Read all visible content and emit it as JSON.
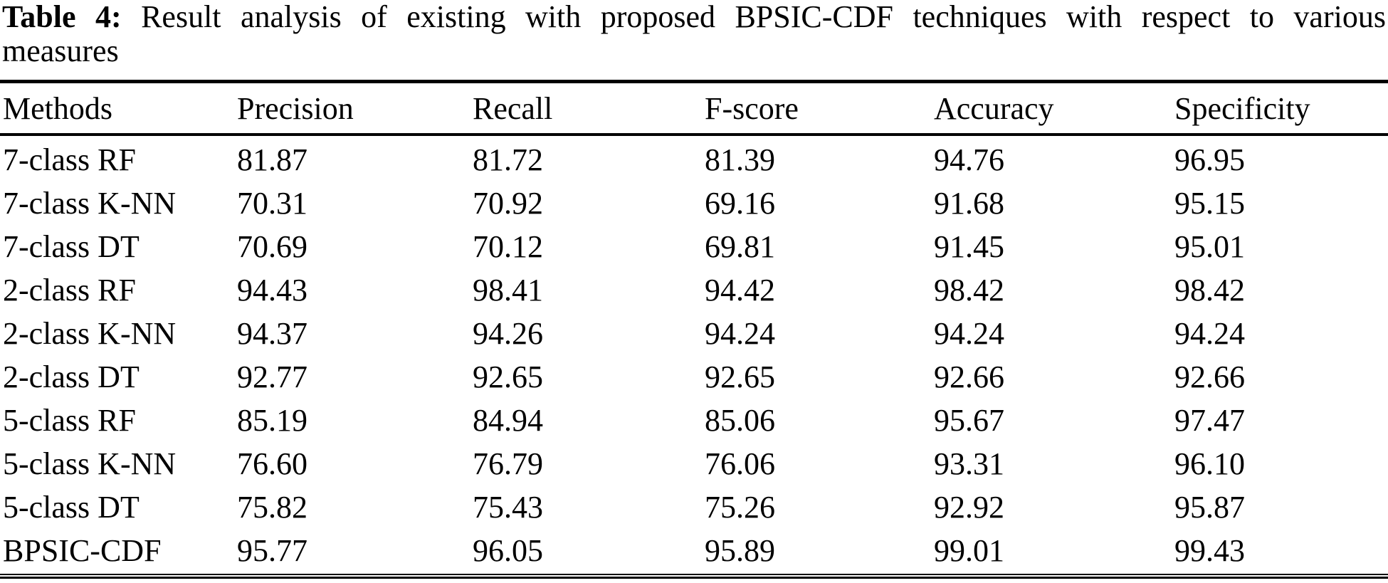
{
  "page": {
    "background_color": "#ffffff",
    "text_color": "#000000",
    "rule_color": "#000000"
  },
  "caption": {
    "bold_prefix": "Table 4:",
    "line1": "Table 4: Result analysis of existing with proposed BPSIC-CDF techniques with respect to various",
    "line2": "measures"
  },
  "table": {
    "columns": [
      "Methods",
      "Precision",
      "Recall",
      "F-score",
      "Accuracy",
      "Specificity"
    ],
    "rows": [
      {
        "method": "7-class RF",
        "values": [
          "81.87",
          "81.72",
          "81.39",
          "94.76",
          "96.95"
        ]
      },
      {
        "method": "7-class K-NN",
        "values": [
          "70.31",
          "70.92",
          "69.16",
          "91.68",
          "95.15"
        ]
      },
      {
        "method": "7-class DT",
        "values": [
          "70.69",
          "70.12",
          "69.81",
          "91.45",
          "95.01"
        ]
      },
      {
        "method": "2-class RF",
        "values": [
          "94.43",
          "98.41",
          "94.42",
          "98.42",
          "98.42"
        ]
      },
      {
        "method": "2-class K-NN",
        "values": [
          "94.37",
          "94.26",
          "94.24",
          "94.24",
          "94.24"
        ]
      },
      {
        "method": "2-class DT",
        "values": [
          "92.77",
          "92.65",
          "92.65",
          "92.66",
          "92.66"
        ]
      },
      {
        "method": "5-class RF",
        "values": [
          "85.19",
          "84.94",
          "85.06",
          "95.67",
          "97.47"
        ]
      },
      {
        "method": "5-class K-NN",
        "values": [
          "76.60",
          "76.79",
          "76.06",
          "93.31",
          "96.10"
        ]
      },
      {
        "method": "5-class DT",
        "values": [
          "75.82",
          "75.43",
          "75.26",
          "92.92",
          "95.87"
        ]
      },
      {
        "method": "BPSIC-CDF",
        "values": [
          "95.77",
          "96.05",
          "95.89",
          "99.01",
          "99.43"
        ]
      }
    ]
  }
}
